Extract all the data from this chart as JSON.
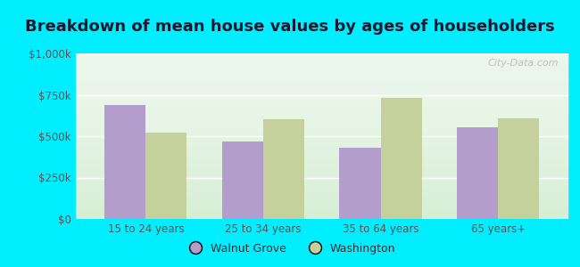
{
  "title": "Breakdown of mean house values by ages of householders",
  "categories": [
    "15 to 24 years",
    "25 to 34 years",
    "35 to 64 years",
    "65 years+"
  ],
  "walnut_grove": [
    690000,
    470000,
    430000,
    555000
  ],
  "washington": [
    520000,
    600000,
    730000,
    610000
  ],
  "walnut_grove_color": "#b39dcc",
  "washington_color": "#c5d19a",
  "ylim": [
    0,
    1000000
  ],
  "yticks": [
    0,
    250000,
    500000,
    750000,
    1000000
  ],
  "ytick_labels": [
    "$0",
    "$250k",
    "$500k",
    "$750k",
    "$1,000k"
  ],
  "background_outer": "#00eeff",
  "legend_labels": [
    "Walnut Grove",
    "Washington"
  ],
  "title_fontsize": 13,
  "bar_width": 0.35,
  "watermark": "City-Data.com"
}
